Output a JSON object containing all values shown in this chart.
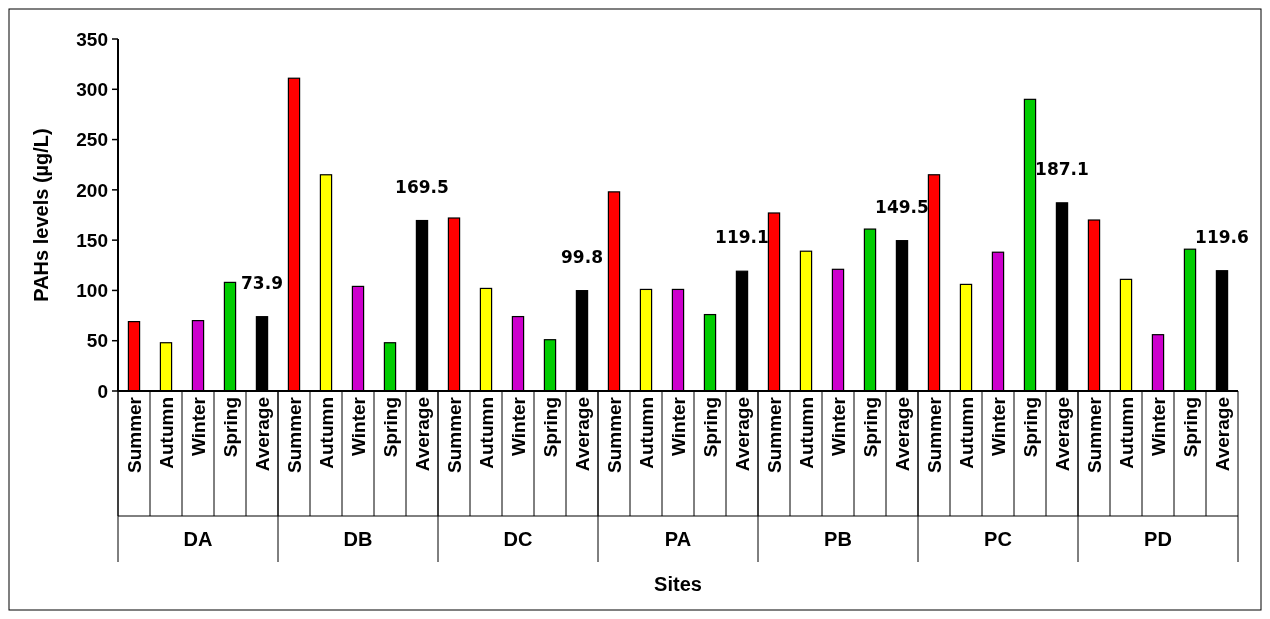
{
  "chart_data": {
    "type": "bar",
    "xlabel": "Sites",
    "ylabel": "PAHs levels (µg/L)",
    "categories": [
      "Summer",
      "Autumn",
      "Winter",
      "Spring",
      "Average",
      "Summer",
      "Autumn",
      "Winter",
      "Spring",
      "Average",
      "Summer",
      "Autumn",
      "Winter",
      "Spring",
      "Average",
      "Summer",
      "Autumn",
      "Winter",
      "Spring",
      "Average",
      "Summer",
      "Autumn",
      "Winter",
      "Spring",
      "Average",
      "Summer",
      "Autumn",
      "Winter",
      "Spring",
      "Average",
      "Summer",
      "Autumn",
      "Winter",
      "Spring",
      "Average"
    ],
    "values": [
      69,
      48,
      70,
      108,
      73.9,
      311,
      215,
      104,
      48,
      169.5,
      172,
      102,
      74,
      51,
      99.8,
      198,
      101,
      101,
      76,
      119.1,
      177,
      139,
      121,
      161,
      149.5,
      215,
      106,
      138,
      290,
      187.1,
      170,
      111,
      56,
      141,
      119.6
    ],
    "colors": [
      "#ff0000",
      "#ffff00",
      "#cc00cc",
      "#00cc00",
      "#000000",
      "#ff0000",
      "#ffff00",
      "#cc00cc",
      "#00cc00",
      "#000000",
      "#ff0000",
      "#ffff00",
      "#cc00cc",
      "#00cc00",
      "#000000",
      "#ff0000",
      "#ffff00",
      "#cc00cc",
      "#00cc00",
      "#000000",
      "#ff0000",
      "#ffff00",
      "#cc00cc",
      "#00cc00",
      "#000000",
      "#ff0000",
      "#ffff00",
      "#cc00cc",
      "#00cc00",
      "#000000",
      "#ff0000",
      "#ffff00",
      "#cc00cc",
      "#00cc00",
      "#000000"
    ],
    "value_labels": [
      null,
      null,
      null,
      null,
      "73.9",
      null,
      null,
      null,
      null,
      "169.5",
      null,
      null,
      null,
      null,
      "99.8",
      null,
      null,
      null,
      null,
      "119.1",
      null,
      null,
      null,
      null,
      "149.5",
      null,
      null,
      null,
      null,
      "187.1",
      null,
      null,
      null,
      null,
      "119.6"
    ],
    "annotations": [
      "DA",
      "DB",
      "DC",
      "PA",
      "PB",
      "PC",
      "PD"
    ],
    "ylim": [
      0,
      350
    ],
    "yticks": [
      0,
      50,
      100,
      150,
      200,
      250,
      300,
      350
    ]
  }
}
